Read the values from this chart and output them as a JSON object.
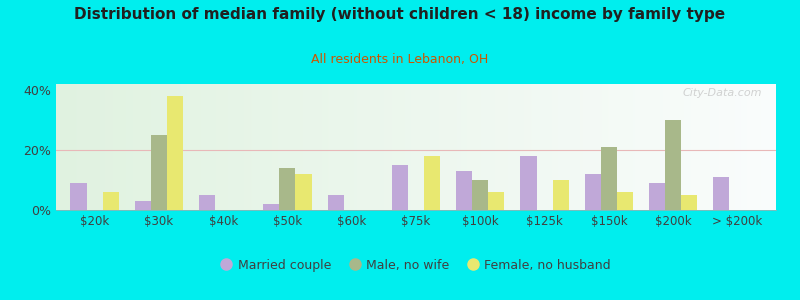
{
  "title": "Distribution of median family (without children < 18) income by family type",
  "subtitle": "All residents in Lebanon, OH",
  "categories": [
    "$20k",
    "$30k",
    "$40k",
    "$50k",
    "$60k",
    "$75k",
    "$100k",
    "$125k",
    "$150k",
    "$200k",
    "> $200k"
  ],
  "married_couple": [
    9,
    3,
    5,
    2,
    5,
    15,
    13,
    18,
    12,
    9,
    11
  ],
  "male_no_wife": [
    0,
    25,
    0,
    14,
    0,
    0,
    10,
    0,
    21,
    30,
    0
  ],
  "female_no_husband": [
    6,
    38,
    0,
    12,
    0,
    18,
    6,
    10,
    6,
    5,
    0
  ],
  "married_color": "#c0a8d8",
  "male_color": "#a8b88a",
  "female_color": "#e8e870",
  "background_color": "#00eeee",
  "title_color": "#202020",
  "subtitle_color": "#cc5500",
  "axis_color": "#404040",
  "grid_color": "#e8b8b8",
  "ylim": [
    0,
    42
  ],
  "yticks": [
    0,
    20,
    40
  ],
  "bar_width": 0.25,
  "watermark": "City-Data.com",
  "legend_labels": [
    "Married couple",
    "Male, no wife",
    "Female, no husband"
  ]
}
